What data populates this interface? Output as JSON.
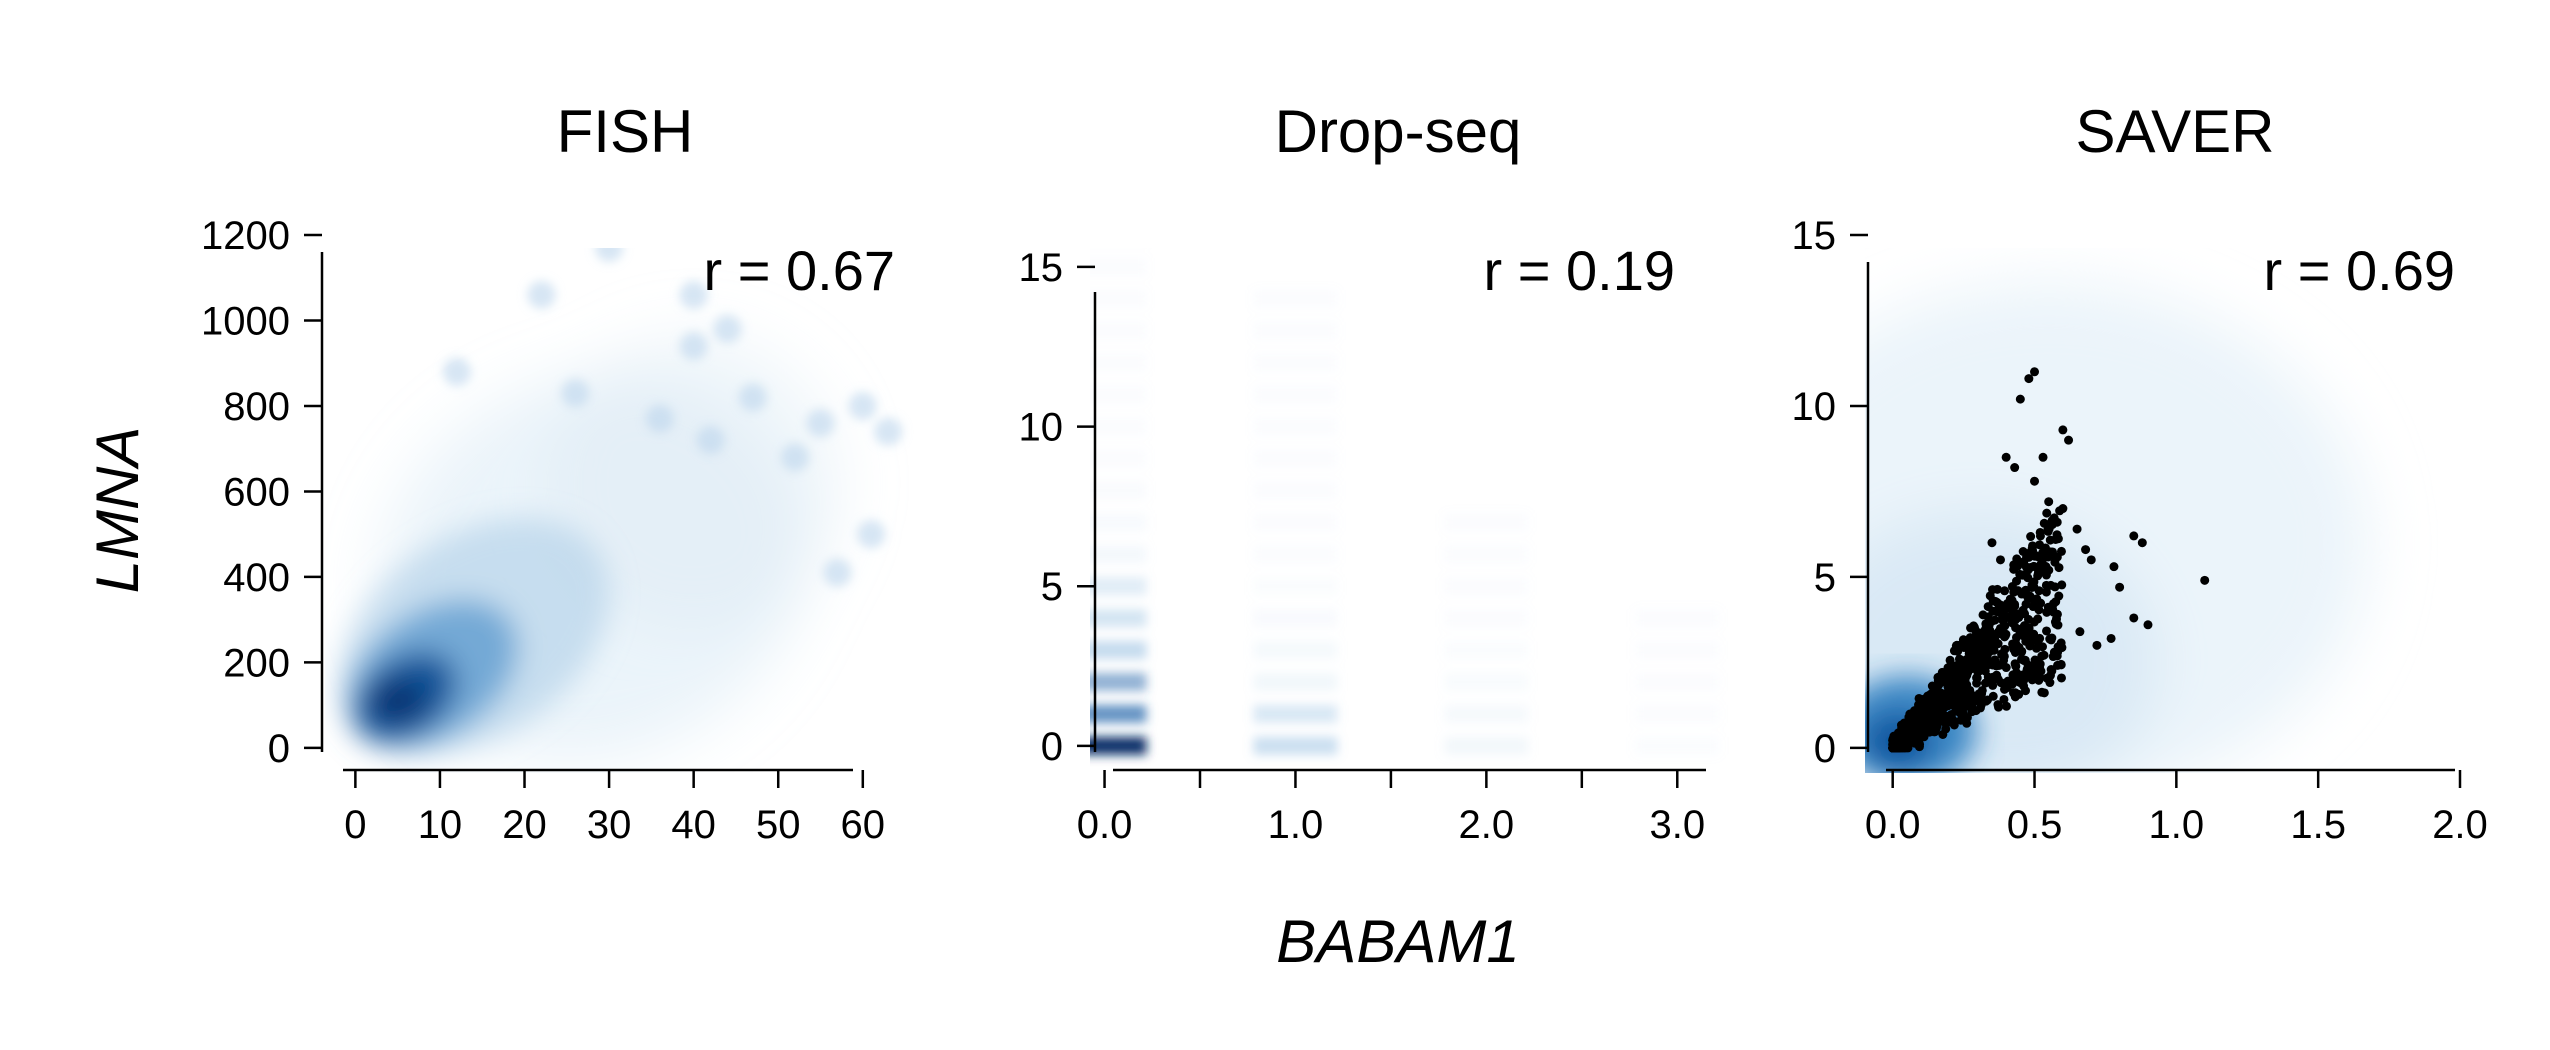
{
  "ylabel": "LMNA",
  "xlabel": "BABAM1",
  "chart_data": [
    {
      "type": "scatter",
      "style": "smoothed-density",
      "title": "FISH",
      "annotation": "r =  0.67",
      "xlim": [
        -3,
        67
      ],
      "ylim": [
        -40,
        1200
      ],
      "xticks": [
        0,
        10,
        20,
        30,
        40,
        50,
        60
      ],
      "yticks": [
        0,
        200,
        400,
        600,
        800,
        1000,
        1200
      ],
      "xtick_labels": [
        "0",
        "10",
        "20",
        "30",
        "40",
        "50",
        "60"
      ],
      "ytick_labels": [
        "0",
        "200",
        "400",
        "600",
        "800",
        "1000",
        "1200"
      ],
      "density_center": [
        6,
        120
      ],
      "outliers": [
        [
          12,
          880
        ],
        [
          22,
          1060
        ],
        [
          30,
          1170
        ],
        [
          26,
          830
        ],
        [
          40,
          1060
        ],
        [
          44,
          980
        ],
        [
          36,
          770
        ],
        [
          40,
          940
        ],
        [
          55,
          760
        ],
        [
          60,
          800
        ],
        [
          63,
          740
        ],
        [
          61,
          500
        ],
        [
          57,
          410
        ],
        [
          52,
          680
        ],
        [
          47,
          820
        ],
        [
          42,
          720
        ]
      ]
    },
    {
      "type": "scatter",
      "style": "smoothed-density",
      "title": "Drop-seq",
      "annotation": "r =  0.19",
      "xlim": [
        -0.05,
        3.25
      ],
      "ylim": [
        -0.6,
        16
      ],
      "xticks": [
        0,
        0.5,
        1,
        1.5,
        2,
        2.5,
        3
      ],
      "yticks": [
        0,
        5,
        10,
        15
      ],
      "xtick_labels": [
        "0.0",
        "",
        "1.0",
        "",
        "2.0",
        "",
        "3.0"
      ],
      "ytick_labels": [
        "0",
        "5",
        "10",
        "15"
      ],
      "columns": [
        {
          "x": 0,
          "max_y": 16,
          "intensity": 1.0
        },
        {
          "x": 1,
          "max_y": 14,
          "intensity": 0.35
        },
        {
          "x": 2,
          "max_y": 7,
          "intensity": 0.18
        },
        {
          "x": 3,
          "max_y": 4,
          "intensity": 0.07
        }
      ]
    },
    {
      "type": "scatter",
      "style": "smoothed-density",
      "title": "SAVER",
      "annotation": "r =  0.69",
      "xlim": [
        -0.08,
        2.0
      ],
      "ylim": [
        -0.5,
        15
      ],
      "xticks": [
        0,
        0.5,
        1,
        1.5,
        2
      ],
      "yticks": [
        0,
        5,
        10,
        15
      ],
      "xtick_labels": [
        "0.0",
        "0.5",
        "1.0",
        "1.5",
        "2.0"
      ],
      "ytick_labels": [
        "0",
        "5",
        "10",
        "15"
      ],
      "highlight_points": [
        [
          0.5,
          11.0
        ],
        [
          0.48,
          10.8
        ],
        [
          0.45,
          10.2
        ],
        [
          0.6,
          9.3
        ],
        [
          0.62,
          9.0
        ],
        [
          0.53,
          8.5
        ],
        [
          0.4,
          8.5
        ],
        [
          0.43,
          8.2
        ],
        [
          0.5,
          7.8
        ],
        [
          0.55,
          7.2
        ],
        [
          0.6,
          7.0
        ],
        [
          0.58,
          6.6
        ],
        [
          0.52,
          6.3
        ],
        [
          0.65,
          6.4
        ],
        [
          0.68,
          5.8
        ],
        [
          0.7,
          5.5
        ],
        [
          0.78,
          5.3
        ],
        [
          0.85,
          6.2
        ],
        [
          0.88,
          6.0
        ],
        [
          0.8,
          4.7
        ],
        [
          0.85,
          3.8
        ],
        [
          0.9,
          3.6
        ],
        [
          0.77,
          3.2
        ],
        [
          0.72,
          3.0
        ],
        [
          0.66,
          3.4
        ],
        [
          1.1,
          4.9
        ],
        [
          0.57,
          2.8
        ],
        [
          0.47,
          4.2
        ],
        [
          0.38,
          5.5
        ],
        [
          0.35,
          6.0
        ]
      ]
    }
  ]
}
